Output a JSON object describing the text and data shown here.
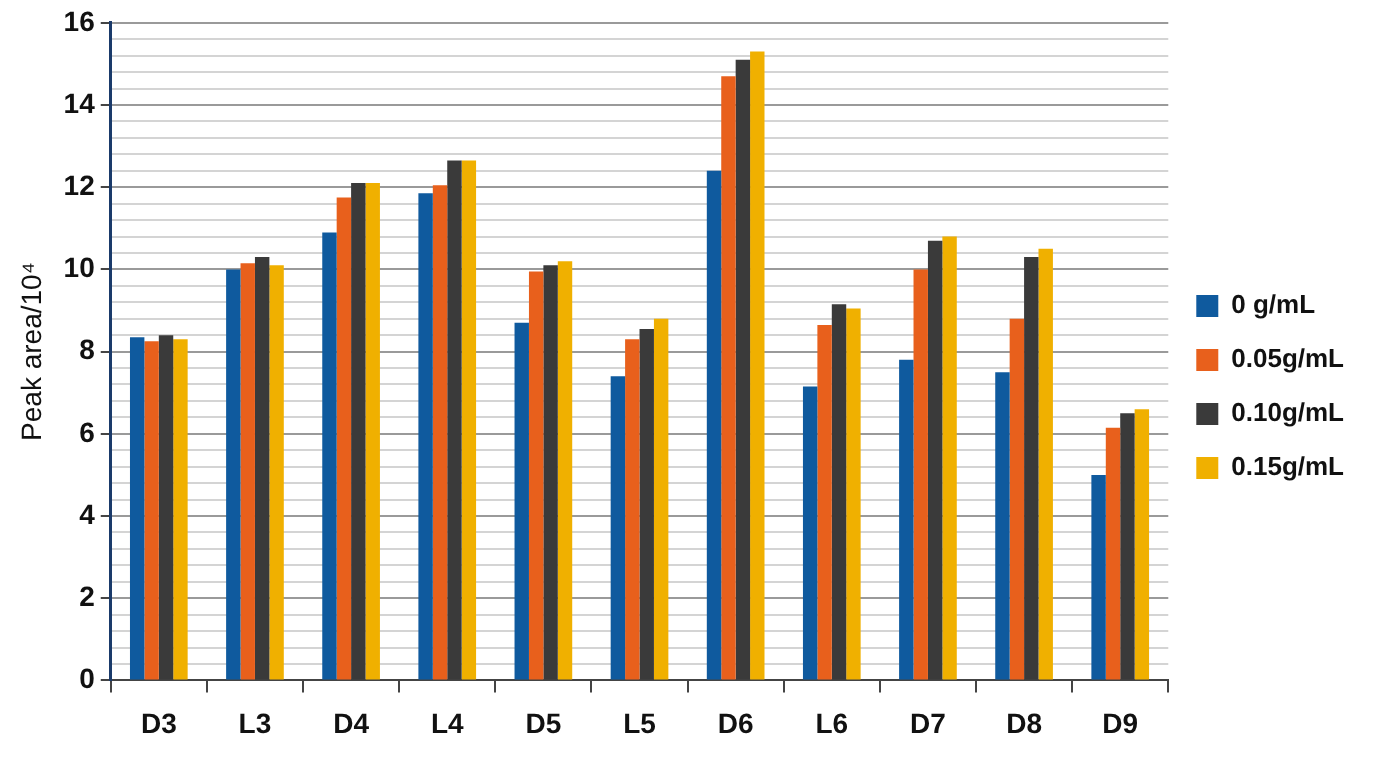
{
  "chart_data": {
    "type": "bar",
    "ylabel": "Peak area/10⁴",
    "categories": [
      "D3",
      "L3",
      "D4",
      "L4",
      "D5",
      "L5",
      "D6",
      "L6",
      "D7",
      "D8",
      "D9"
    ],
    "series": [
      {
        "name": "0 g/mL",
        "color": "#0f5a9e",
        "values": [
          8.35,
          10.0,
          10.9,
          11.85,
          8.7,
          7.4,
          12.4,
          7.15,
          7.8,
          7.5,
          5.0
        ]
      },
      {
        "name": "0.05g/mL",
        "color": "#e8601c",
        "values": [
          8.25,
          10.15,
          11.75,
          12.05,
          9.95,
          8.3,
          14.7,
          8.65,
          10.0,
          8.8,
          6.15
        ]
      },
      {
        "name": "0.10g/mL",
        "color": "#3a3a3a",
        "values": [
          8.4,
          10.3,
          12.1,
          12.65,
          10.1,
          8.55,
          15.1,
          9.15,
          10.7,
          10.3,
          6.5
        ]
      },
      {
        "name": "0.15g/mL",
        "color": "#f0b000",
        "values": [
          8.3,
          10.1,
          12.1,
          12.65,
          10.2,
          8.8,
          15.3,
          9.05,
          10.8,
          10.5,
          6.6
        ]
      }
    ],
    "ylim": [
      0,
      16
    ],
    "yticks": [
      0,
      {
        "value": 0.4,
        "label": null
      },
      {
        "value": 0.8,
        "label": null
      },
      {
        "value": 1.2,
        "label": null
      },
      {
        "value": 1.6,
        "label": null
      },
      2,
      {
        "value": 2.4,
        "label": null
      },
      {
        "value": 2.8,
        "label": null
      },
      {
        "value": 3.2,
        "label": null
      },
      {
        "value": 3.6,
        "label": null
      },
      4,
      {
        "value": 4.4,
        "label": null
      },
      {
        "value": 4.8,
        "label": null
      },
      {
        "value": 5.2,
        "label": null
      },
      {
        "value": 5.6,
        "label": null
      },
      6,
      {
        "value": 6.4,
        "label": null
      },
      {
        "value": 6.8,
        "label": null
      },
      {
        "value": 7.2,
        "label": null
      },
      {
        "value": 7.6,
        "label": null
      },
      8,
      {
        "value": 8.4,
        "label": null
      },
      {
        "value": 8.8,
        "label": null
      },
      {
        "value": 9.2,
        "label": null
      },
      {
        "value": 9.6,
        "label": null
      },
      10,
      {
        "value": 10.4,
        "label": null
      },
      {
        "value": 10.8,
        "label": null
      },
      {
        "value": 11.2,
        "label": null
      },
      {
        "value": 11.6,
        "label": null
      },
      12,
      {
        "value": 12.4,
        "label": null
      },
      {
        "value": 12.8,
        "label": null
      },
      {
        "value": 13.2,
        "label": null
      },
      {
        "value": 13.6,
        "label": null
      },
      14,
      {
        "value": 14.4,
        "label": null
      },
      {
        "value": 14.8,
        "label": null
      },
      {
        "value": 15.2,
        "label": null
      },
      {
        "value": 15.6,
        "label": null
      },
      16
    ],
    "grid": "y",
    "legend": "right"
  }
}
